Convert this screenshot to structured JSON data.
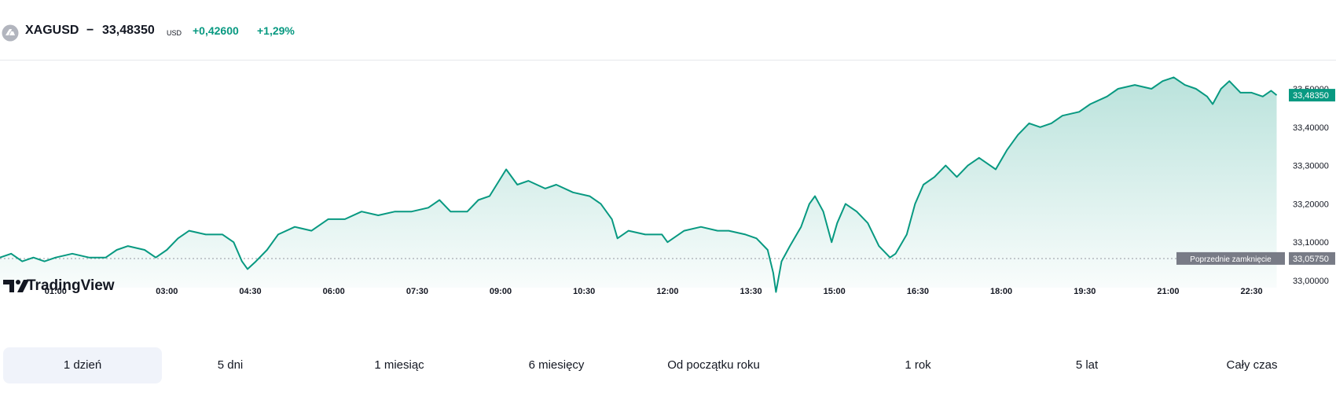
{
  "header": {
    "symbol": "XAGUSD",
    "separator": "−",
    "price": "33,48350",
    "currency": "USD",
    "change": "+0,42600",
    "change_percent": "+1,29%",
    "icon": "silver-coin-icon"
  },
  "brand": {
    "name": "TradingView"
  },
  "colors": {
    "line": "#089981",
    "fill_top": "#bfe7df",
    "label_bg": "#089981",
    "prev_close_bg": "#787b86"
  },
  "chart_data": {
    "type": "area",
    "xlabel": "",
    "ylabel": "",
    "ylim": [
      32.96,
      33.55
    ],
    "grid": false,
    "x_tick_labels": [
      "01:00",
      "03:00",
      "04:30",
      "06:00",
      "07:30",
      "09:00",
      "10:30",
      "12:00",
      "13:30",
      "15:00",
      "16:30",
      "18:00",
      "19:30",
      "21:00",
      "22:30"
    ],
    "x_tick_hours": [
      1,
      3,
      4.5,
      6,
      7.5,
      9,
      10.5,
      12,
      13.5,
      15,
      16.5,
      18,
      19.5,
      21,
      22.5
    ],
    "y_tick_labels": [
      "33,00000",
      "33,10000",
      "33,20000",
      "33,30000",
      "33,40000",
      "33,50000"
    ],
    "y_tick_values": [
      33.0,
      33.1,
      33.2,
      33.3,
      33.4,
      33.5
    ],
    "previous_close": {
      "label": "Poprzednie zamknięcie",
      "value": 33.0575,
      "value_label": "33,05750"
    },
    "last_price": {
      "value": 33.4835,
      "value_label": "33,48350"
    },
    "series": [
      {
        "values": [
          [
            0.0,
            33.06
          ],
          [
            0.2,
            33.07
          ],
          [
            0.4,
            33.05
          ],
          [
            0.6,
            33.06
          ],
          [
            0.8,
            33.05
          ],
          [
            1.0,
            33.06
          ],
          [
            1.3,
            33.07
          ],
          [
            1.6,
            33.06
          ],
          [
            1.9,
            33.06
          ],
          [
            2.1,
            33.08
          ],
          [
            2.3,
            33.09
          ],
          [
            2.6,
            33.08
          ],
          [
            2.8,
            33.06
          ],
          [
            3.0,
            33.08
          ],
          [
            3.2,
            33.11
          ],
          [
            3.4,
            33.13
          ],
          [
            3.7,
            33.12
          ],
          [
            4.0,
            33.12
          ],
          [
            4.2,
            33.1
          ],
          [
            4.35,
            33.05
          ],
          [
            4.45,
            33.03
          ],
          [
            4.6,
            33.05
          ],
          [
            4.8,
            33.08
          ],
          [
            5.0,
            33.12
          ],
          [
            5.3,
            33.14
          ],
          [
            5.6,
            33.13
          ],
          [
            5.9,
            33.16
          ],
          [
            6.2,
            33.16
          ],
          [
            6.5,
            33.18
          ],
          [
            6.8,
            33.17
          ],
          [
            7.1,
            33.18
          ],
          [
            7.4,
            33.18
          ],
          [
            7.7,
            33.19
          ],
          [
            7.9,
            33.21
          ],
          [
            8.1,
            33.18
          ],
          [
            8.4,
            33.18
          ],
          [
            8.6,
            33.21
          ],
          [
            8.8,
            33.22
          ],
          [
            9.1,
            33.29
          ],
          [
            9.3,
            33.25
          ],
          [
            9.5,
            33.26
          ],
          [
            9.8,
            33.24
          ],
          [
            10.0,
            33.25
          ],
          [
            10.3,
            33.23
          ],
          [
            10.6,
            33.22
          ],
          [
            10.8,
            33.2
          ],
          [
            11.0,
            33.16
          ],
          [
            11.1,
            33.11
          ],
          [
            11.3,
            33.13
          ],
          [
            11.6,
            33.12
          ],
          [
            11.9,
            33.12
          ],
          [
            12.0,
            33.1
          ],
          [
            12.3,
            33.13
          ],
          [
            12.6,
            33.14
          ],
          [
            12.9,
            33.13
          ],
          [
            13.1,
            33.13
          ],
          [
            13.4,
            33.12
          ],
          [
            13.6,
            33.11
          ],
          [
            13.8,
            33.08
          ],
          [
            13.9,
            33.02
          ],
          [
            13.95,
            32.97
          ],
          [
            14.05,
            33.05
          ],
          [
            14.2,
            33.09
          ],
          [
            14.4,
            33.14
          ],
          [
            14.55,
            33.2
          ],
          [
            14.65,
            33.22
          ],
          [
            14.8,
            33.18
          ],
          [
            14.95,
            33.1
          ],
          [
            15.05,
            33.15
          ],
          [
            15.2,
            33.2
          ],
          [
            15.4,
            33.18
          ],
          [
            15.6,
            33.15
          ],
          [
            15.8,
            33.09
          ],
          [
            16.0,
            33.06
          ],
          [
            16.1,
            33.07
          ],
          [
            16.3,
            33.12
          ],
          [
            16.45,
            33.2
          ],
          [
            16.6,
            33.25
          ],
          [
            16.8,
            33.27
          ],
          [
            17.0,
            33.3
          ],
          [
            17.2,
            33.27
          ],
          [
            17.4,
            33.3
          ],
          [
            17.6,
            33.32
          ],
          [
            17.8,
            33.3
          ],
          [
            17.9,
            33.29
          ],
          [
            18.1,
            33.34
          ],
          [
            18.3,
            33.38
          ],
          [
            18.5,
            33.41
          ],
          [
            18.7,
            33.4
          ],
          [
            18.9,
            33.41
          ],
          [
            19.1,
            33.43
          ],
          [
            19.4,
            33.44
          ],
          [
            19.6,
            33.46
          ],
          [
            19.9,
            33.48
          ],
          [
            20.1,
            33.5
          ],
          [
            20.4,
            33.51
          ],
          [
            20.7,
            33.5
          ],
          [
            20.9,
            33.52
          ],
          [
            21.1,
            33.53
          ],
          [
            21.3,
            33.51
          ],
          [
            21.5,
            33.5
          ],
          [
            21.7,
            33.48
          ],
          [
            21.8,
            33.46
          ],
          [
            21.95,
            33.5
          ],
          [
            22.1,
            33.52
          ],
          [
            22.3,
            33.49
          ],
          [
            22.5,
            33.49
          ],
          [
            22.7,
            33.48
          ],
          [
            22.85,
            33.495
          ],
          [
            22.95,
            33.4835
          ]
        ]
      }
    ]
  },
  "tabs": [
    {
      "label": "1 dzień",
      "active": true
    },
    {
      "label": "5 dni",
      "active": false
    },
    {
      "label": "1 miesiąc",
      "active": false
    },
    {
      "label": "6 miesięcy",
      "active": false
    },
    {
      "label": "Od początku roku",
      "active": false
    },
    {
      "label": "1 rok",
      "active": false
    },
    {
      "label": "5 lat",
      "active": false
    },
    {
      "label": "Cały czas",
      "active": false
    }
  ]
}
